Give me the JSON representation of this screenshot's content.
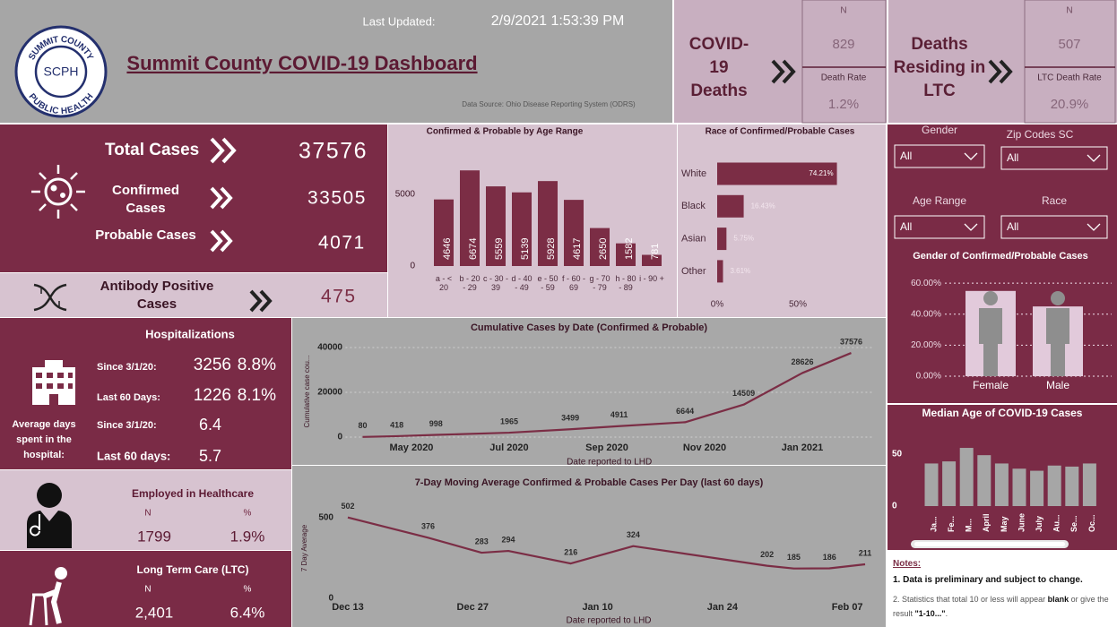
{
  "header": {
    "title": "Summit County COVID-19 Dashboard",
    "last_updated_label": "Last Updated:",
    "last_updated": "2/9/2021 1:53:39 PM",
    "data_source": "Data Source: Ohio Disease Reporting System (ODRS)",
    "logo": {
      "top": "SUMMIT COUNTY",
      "bottom": "PUBLIC HEALTH",
      "initials": "SCPH"
    }
  },
  "deaths": {
    "title": "COVID-19 Deaths",
    "n_label": "N",
    "n": 829,
    "rate_label": "Death Rate",
    "rate": "1.2%"
  },
  "ltc_deaths": {
    "title": "Deaths Residing in LTC",
    "n_label": "N",
    "n": 507,
    "rate_label": "LTC Death Rate",
    "rate": "20.9%"
  },
  "cases": {
    "total": {
      "label": "Total Cases",
      "value": 37576
    },
    "confirmed": {
      "label": "Confirmed Cases",
      "value": 33505
    },
    "probable": {
      "label": "Probable Cases",
      "value": 4071
    },
    "antibody": {
      "label": "Antibody Positive Cases",
      "value": 475
    }
  },
  "hospitalizations": {
    "title": "Hospitalizations",
    "rows": [
      {
        "label": "Since 3/1/20:",
        "n": 3256,
        "pct": "8.8%"
      },
      {
        "label": "Last 60 Days:",
        "n": 1226,
        "pct": "8.1%"
      }
    ],
    "avg_days_label": "Average days spent in the hospital:",
    "avg_rows": [
      {
        "label": "Since 3/1/20:",
        "value": 6.4
      },
      {
        "label": "Last 60 days:",
        "value": 5.7
      }
    ]
  },
  "healthcare": {
    "title": "Employed in Healthcare",
    "n_label": "N",
    "pct_label": "%",
    "n": 1799,
    "pct": "1.9%"
  },
  "ltc": {
    "title": "Long Term Care (LTC)",
    "n_label": "N",
    "pct_label": "%",
    "n": "2,401",
    "pct": "6.4%"
  },
  "filters": [
    {
      "label": "Gender",
      "value": "All"
    },
    {
      "label": "Zip Codes SC",
      "value": "All"
    },
    {
      "label": "Age Range",
      "value": "All"
    },
    {
      "label": "Race",
      "value": "All"
    }
  ],
  "notes": {
    "title": "Notes:",
    "item1": "1. Data is preliminary and subject to change.",
    "item2": [
      "2. Statistics that total 10 or less will appear ",
      "blank",
      " or give the result ",
      "\"1-10...\"",
      "."
    ]
  },
  "chart_data": [
    {
      "type": "bar",
      "title": "Confirmed & Probable by Age Range",
      "categories": [
        "a - < 20",
        "b - 20 - 29",
        "c - 30 - 39",
        "d - 40 - 49",
        "e - 50 - 59",
        "f - 60 - 69",
        "g - 70 - 79",
        "h - 80 - 89",
        "i - 90 +"
      ],
      "values": [
        4646,
        6674,
        5559,
        5139,
        5928,
        4617,
        2650,
        1582,
        781
      ],
      "color": "#7b2d45",
      "ylim": [
        0,
        7000
      ],
      "yticks": [
        0,
        5000
      ],
      "grid": false
    },
    {
      "type": "hbar",
      "title": "Race of Confirmed/Probable Cases",
      "categories": [
        "White",
        "Black",
        "Asian",
        "Other"
      ],
      "values": [
        74.21,
        16.43,
        5.75,
        3.61
      ],
      "value_labels": [
        "74.21%",
        "16.43%",
        "5.75%",
        "3.61%"
      ],
      "color": "#7b2d45",
      "xlim": [
        0,
        80
      ],
      "xticks": [
        {
          "value": 0,
          "label": "0%"
        },
        {
          "value": 50,
          "label": "50%"
        }
      ],
      "grid": false
    },
    {
      "type": "bar",
      "title": "Gender of Confirmed/Probable Cases",
      "categories": [
        "Female",
        "Male"
      ],
      "values": [
        55,
        45
      ],
      "color": "#e2cadb",
      "ylim": [
        0,
        65
      ],
      "yticks": [
        {
          "value": 0,
          "label": "0.00%"
        },
        {
          "value": 20,
          "label": "20.00%"
        },
        {
          "value": 40,
          "label": "40.00%"
        },
        {
          "value": 60,
          "label": "60.00%"
        }
      ],
      "grid": true
    },
    {
      "type": "bar",
      "title": "Median Age of COVID-19 Cases",
      "categories": [
        "Ja...",
        "Fe...",
        "M...",
        "April",
        "May",
        "June",
        "July",
        "Au...",
        "Se...",
        "Oc..."
      ],
      "values": [
        41,
        43,
        56,
        49,
        41,
        36,
        34,
        39,
        38,
        41
      ],
      "color": "#a6a6a6",
      "ylim": [
        0,
        60
      ],
      "yticks": [
        0,
        50
      ],
      "grid": false
    },
    {
      "type": "line",
      "title": "Cumulative Cases by Date (Confirmed & Probable)",
      "x_label": "Date reported to LHD",
      "y_label": "Cumulative case cou...",
      "x": [
        3.0,
        3.7,
        4.5,
        6.0,
        7.25,
        8.25,
        9.6,
        10.8,
        12.0,
        13.0
      ],
      "values": [
        80,
        418,
        998,
        1965,
        3499,
        4911,
        6644,
        14509,
        28626,
        37576
      ],
      "color": "#7b2d45",
      "xlim": [
        2.65,
        13.45
      ],
      "xticks": [
        {
          "value": 4,
          "label": "May 2020"
        },
        {
          "value": 6,
          "label": "Jul 2020"
        },
        {
          "value": 8,
          "label": "Sep 2020"
        },
        {
          "value": 10,
          "label": "Nov 2020"
        },
        {
          "value": 12,
          "label": "Jan 2021"
        }
      ],
      "ylim": [
        0,
        43000
      ],
      "yticks": [
        0,
        20000,
        40000
      ],
      "grid": true
    },
    {
      "type": "line",
      "title": "7-Day Moving Average Confirmed & Probable Cases Per Day (last 60 days)",
      "x_label": "Date reported to LHD",
      "y_label": "7 Day Average",
      "x": [
        0,
        9,
        15,
        18,
        25,
        32,
        47,
        50,
        54,
        58
      ],
      "values": [
        502,
        376,
        283,
        294,
        216,
        324,
        202,
        185,
        186,
        211
      ],
      "color": "#7b2d45",
      "xlim": [
        -0.3,
        58.8
      ],
      "xticks": [
        {
          "value": 0,
          "label": "Dec 13"
        },
        {
          "value": 14,
          "label": "Dec 27"
        },
        {
          "value": 28,
          "label": "Jan 10"
        },
        {
          "value": 42,
          "label": "Jan 24"
        },
        {
          "value": 56,
          "label": "Feb 07"
        }
      ],
      "ylim": [
        0,
        600
      ],
      "yticks": [
        0,
        500
      ],
      "grid": false
    }
  ]
}
